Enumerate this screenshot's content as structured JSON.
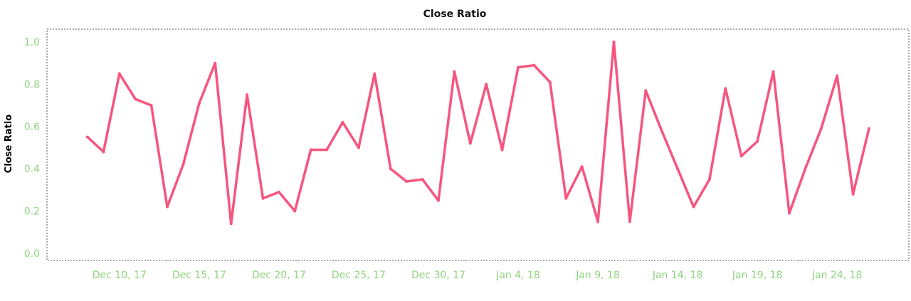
{
  "chart_data": {
    "type": "line",
    "title": "Close Ratio",
    "ylabel": "Close Ratio",
    "xlabel": "",
    "ylim": [
      0,
      1.0
    ],
    "yticks": [
      "0.0",
      "0.2",
      "0.4",
      "0.6",
      "0.8",
      "1.0"
    ],
    "xticks": [
      {
        "date": "2017-12-10",
        "label": "Dec 10, 17"
      },
      {
        "date": "2017-12-15",
        "label": "Dec 15, 17"
      },
      {
        "date": "2017-12-20",
        "label": "Dec 20, 17"
      },
      {
        "date": "2017-12-25",
        "label": "Dec 25, 17"
      },
      {
        "date": "2017-12-30",
        "label": "Dec 30, 17"
      },
      {
        "date": "2018-01-04",
        "label": "Jan 4, 18"
      },
      {
        "date": "2018-01-09",
        "label": "Jan 9, 18"
      },
      {
        "date": "2018-01-14",
        "label": "Jan 14, 18"
      },
      {
        "date": "2018-01-19",
        "label": "Jan 19, 18"
      },
      {
        "date": "2018-01-24",
        "label": "Jan 24, 18"
      }
    ],
    "x": [
      "2017-12-08",
      "2017-12-09",
      "2017-12-10",
      "2017-12-11",
      "2017-12-12",
      "2017-12-13",
      "2017-12-14",
      "2017-12-15",
      "2017-12-16",
      "2017-12-17",
      "2017-12-18",
      "2017-12-19",
      "2017-12-20",
      "2017-12-21",
      "2017-12-22",
      "2017-12-23",
      "2017-12-24",
      "2017-12-25",
      "2017-12-26",
      "2017-12-27",
      "2017-12-28",
      "2017-12-29",
      "2017-12-30",
      "2017-12-31",
      "2018-01-01",
      "2018-01-02",
      "2018-01-03",
      "2018-01-04",
      "2018-01-05",
      "2018-01-06",
      "2018-01-07",
      "2018-01-08",
      "2018-01-09",
      "2018-01-10",
      "2018-01-11",
      "2018-01-12",
      "2018-01-13",
      "2018-01-14",
      "2018-01-15",
      "2018-01-16",
      "2018-01-17",
      "2018-01-18",
      "2018-01-19",
      "2018-01-20",
      "2018-01-21",
      "2018-01-22",
      "2018-01-23",
      "2018-01-24",
      "2018-01-25",
      "2018-01-26"
    ],
    "series": [
      {
        "values": [
          0.55,
          0.48,
          0.85,
          0.73,
          0.7,
          0.22,
          0.42,
          0.71,
          0.9,
          0.14,
          0.75,
          0.26,
          0.29,
          0.2,
          0.49,
          0.49,
          0.62,
          0.5,
          0.85,
          0.4,
          0.34,
          0.35,
          0.25,
          0.86,
          0.52,
          0.8,
          0.49,
          0.88,
          0.89,
          0.81,
          0.26,
          0.41,
          0.15,
          1.0,
          0.15,
          0.77,
          0.58,
          0.4,
          0.22,
          0.35,
          0.78,
          0.46,
          0.53,
          0.86,
          0.19,
          0.4,
          0.59,
          0.84,
          0.28,
          0.59
        ]
      }
    ],
    "grid": false,
    "colors": {
      "line": "#f6557f",
      "axis_text": "#8fd47f",
      "title": "#111111",
      "frame": "#555555"
    }
  }
}
